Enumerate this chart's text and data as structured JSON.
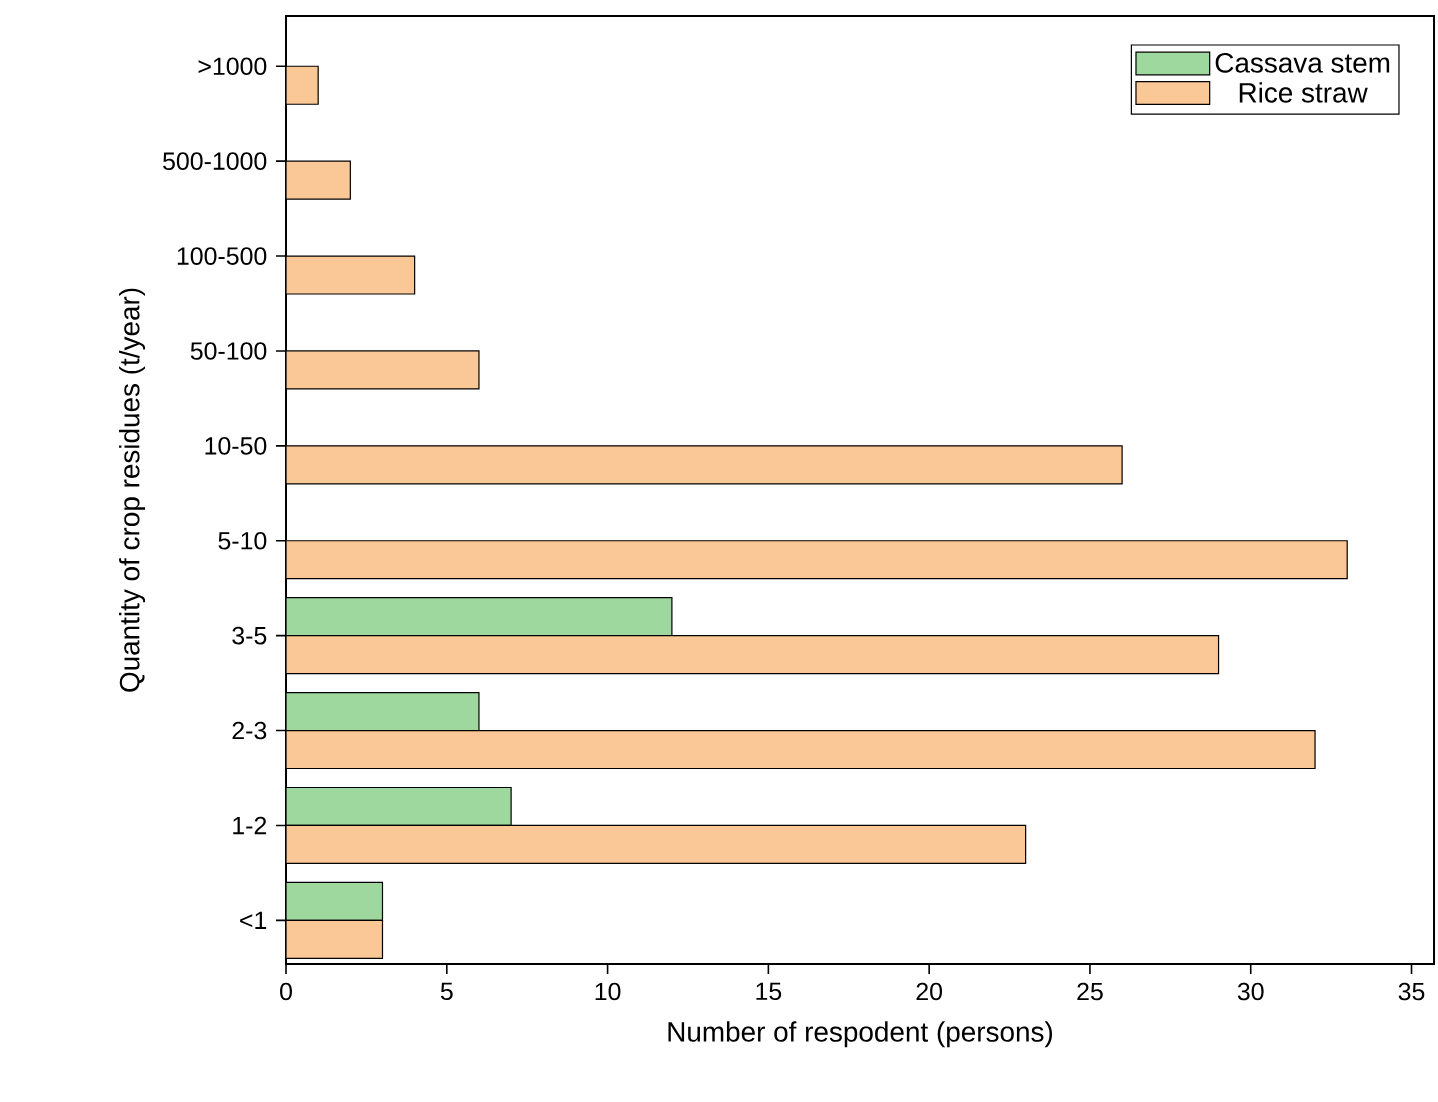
{
  "chart_data": {
    "type": "bar",
    "orientation": "horizontal",
    "xlabel": "Number of respodent (persons)",
    "ylabel": "Quantity of crop residues (t/year)",
    "categories": [
      ">1000",
      "500-1000",
      "100-500",
      "50-100",
      "10-50",
      "5-10",
      "3-5",
      "2-3",
      "1-2",
      "<1"
    ],
    "series": [
      {
        "name": "Cassava stem",
        "color": "#9fd89f",
        "values": [
          null,
          null,
          null,
          null,
          null,
          null,
          12,
          6,
          7,
          3
        ]
      },
      {
        "name": "Rice straw",
        "color": "#fac897",
        "values": [
          1,
          2,
          4,
          6,
          26,
          33,
          29,
          32,
          23,
          3
        ]
      }
    ],
    "xlim": [
      0,
      35.7
    ],
    "xticks": [
      0,
      5,
      10,
      15,
      20,
      25,
      30,
      35
    ],
    "legend": "top right"
  }
}
